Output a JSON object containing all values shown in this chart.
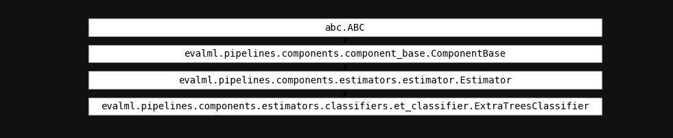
{
  "background_color": "#111111",
  "box_fill_color": "#ffffff",
  "box_edge_color": "#aaaaaa",
  "text_color": "#000000",
  "arrow_color": "#000000",
  "boxes": [
    {
      "label": "abc.ABC"
    },
    {
      "label": "evalml.pipelines.components.component_base.ComponentBase"
    },
    {
      "label": "evalml.pipelines.components.estimators.estimator.Estimator"
    },
    {
      "label": "evalml.pipelines.components.estimators.classifiers.et_classifier.ExtraTreesClassifier"
    }
  ],
  "font_size": 10,
  "figsize": [
    9.81,
    2.03
  ],
  "dpi": 100
}
